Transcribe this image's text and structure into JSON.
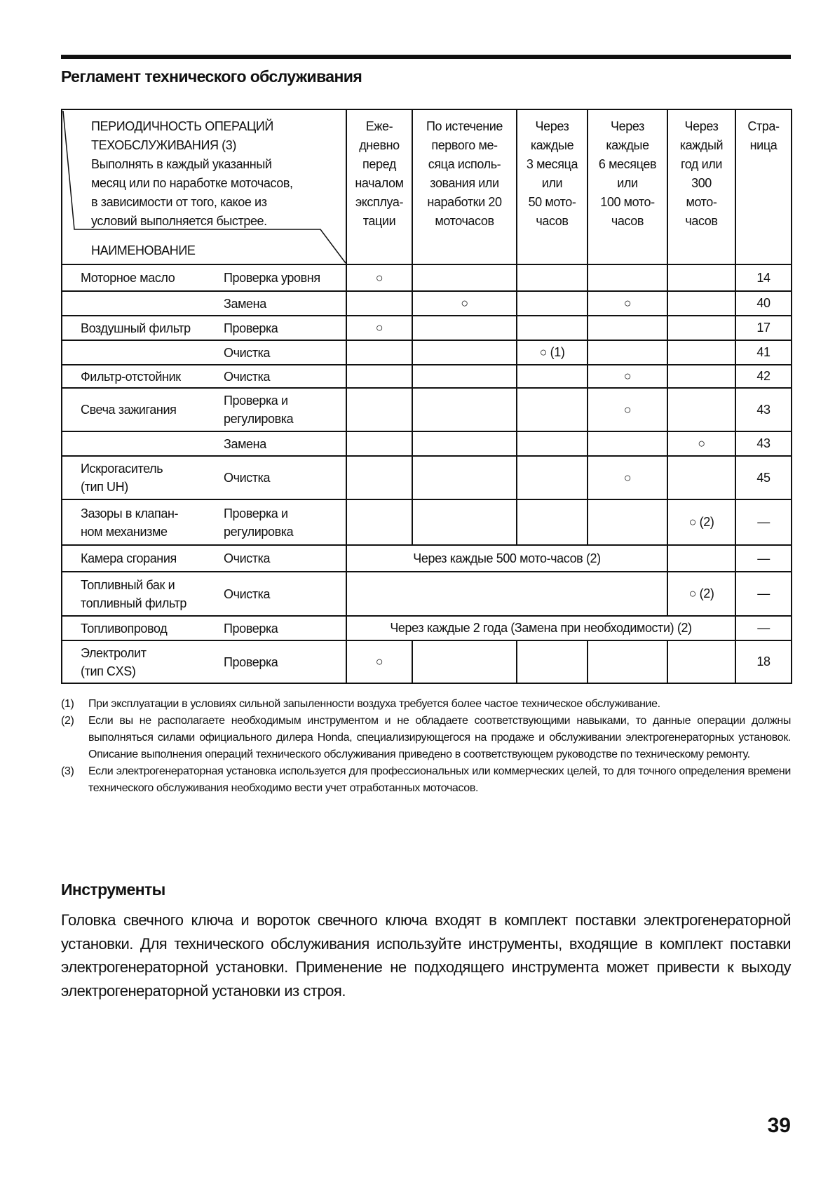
{
  "title": "Регламент технического обслуживания",
  "table": {
    "header_left": {
      "lines": [
        "ПЕРИОДИЧНОСТЬ ОПЕРАЦИЙ",
        "ТЕХОБСЛУЖИВАНИЯ (3)",
        "Выполнять в каждый указанный",
        "месяц или по наработке моточасов,",
        "в зависимости от того, какое из",
        "условий выполняется быстрее."
      ],
      "name_label": "НАИМЕНОВАНИЕ"
    },
    "columns": [
      [
        "Еже-",
        "дневно",
        "перед",
        "началом",
        "эксплуа-",
        "тации"
      ],
      [
        "По истечение",
        "первого ме-",
        "сяца исполь-",
        "зования или",
        "наработки 20",
        "моточасов"
      ],
      [
        "Через",
        "каждые",
        "3 месяца",
        "или",
        "50 мото-",
        "часов"
      ],
      [
        "Через",
        "каждые",
        "6 месяцев",
        "или",
        "100 мото-",
        "часов"
      ],
      [
        "Через",
        "каждый",
        "год или",
        "300",
        "мото-",
        "часов"
      ],
      [
        "Стра-",
        "ница"
      ]
    ],
    "rows": [
      {
        "name": [
          "Моторное масло"
        ],
        "operation": [
          "Проверка уровня"
        ],
        "marks": [
          "○",
          "",
          "",
          "",
          ""
        ],
        "page": "14"
      },
      {
        "name": [],
        "operation": [
          "Замена"
        ],
        "marks": [
          "",
          "○",
          "",
          "○",
          ""
        ],
        "page": "40"
      },
      {
        "name": [
          "Воздушный фильтр"
        ],
        "operation": [
          "Проверка"
        ],
        "marks": [
          "○",
          "",
          "",
          "",
          ""
        ],
        "page": "17"
      },
      {
        "name": [],
        "operation": [
          "Очистка"
        ],
        "marks": [
          "",
          "",
          "○ (1)",
          "",
          ""
        ],
        "page": "41"
      },
      {
        "name": [
          "Фильтр-отстойник"
        ],
        "operation": [
          "Очистка"
        ],
        "marks": [
          "",
          "",
          "",
          "○",
          ""
        ],
        "page": "42"
      },
      {
        "name": [
          "Свеча зажигания"
        ],
        "operation": [
          "Проверка и",
          "регулировка"
        ],
        "marks": [
          "",
          "",
          "",
          "○",
          ""
        ],
        "page": "43"
      },
      {
        "name": [],
        "operation": [
          "Замена"
        ],
        "marks": [
          "",
          "",
          "",
          "",
          "○"
        ],
        "page": "43"
      },
      {
        "name": [
          "Искрогаситель",
          "(тип UH)"
        ],
        "operation": [
          "Очистка"
        ],
        "marks": [
          "",
          "",
          "",
          "○",
          ""
        ],
        "page": "45"
      },
      {
        "name": [
          "Зазоры в клапан-",
          "ном механизме"
        ],
        "operation": [
          "Проверка и",
          "регулировка"
        ],
        "marks": [
          "",
          "",
          "",
          "",
          "○ (2)"
        ],
        "page": "—"
      },
      {
        "name": [
          "Камера сгорания"
        ],
        "operation": [
          "Очистка"
        ],
        "marks": [
          {
            "text": "Через каждые 500 мото-часов (2)",
            "colspan": 4
          },
          ""
        ],
        "page": "—"
      },
      {
        "name": [
          "Топливный бак и",
          "топливный фильтр"
        ],
        "operation": [
          "Очистка"
        ],
        "marks": [
          {
            "text": "",
            "colspan": 4
          },
          "○ (2)"
        ],
        "page": "—"
      },
      {
        "name": [
          "Топливопровод"
        ],
        "operation": [
          "Проверка"
        ],
        "marks": [
          {
            "text": "Через каждые 2 года (Замена при необходимости) (2)",
            "colspan": 5
          }
        ],
        "page": "—"
      },
      {
        "name": [
          "Электролит",
          "(тип CXS)"
        ],
        "operation": [
          "Проверка"
        ],
        "marks": [
          "○",
          "",
          "",
          "",
          ""
        ],
        "page": "18"
      }
    ]
  },
  "footnotes": [
    {
      "num": "(1)",
      "text": "При эксплуатации в условиях сильной запыленности воздуха требуется более частое техническое обслуживание."
    },
    {
      "num": "(2)",
      "text": "Если вы не располагаете необходимым инструментом и не обладаете соответствующими навыками, то данные операции должны выполняться силами официального дилера Honda, специализирующегося на продаже и обслуживании электрогенераторных установок. Описание выполнения операций технического обслуживания приведено в соответствующем руководстве по техническому ремонту."
    },
    {
      "num": "(3)",
      "text": "Если электрогенераторная установка используется для профессиональных или коммерческих целей, то для точного определения времени технического обслуживания необходимо вести учет отработанных моточасов."
    }
  ],
  "tools": {
    "heading": "Инструменты",
    "text": "Головка свечного ключа и вороток свечного ключа входят в комплект поставки электро­генераторной установки. Для технического обслуживания используйте инструменты, вхо­дящие в комплект поставки электрогенераторной установки. Применение не подходящего инструмента может привести к выходу электрогенераторной установки из строя."
  },
  "page_number": "39"
}
